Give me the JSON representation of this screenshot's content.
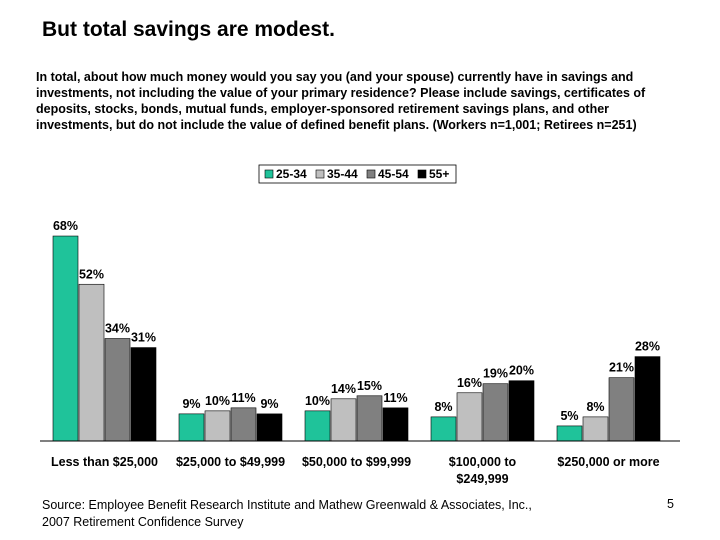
{
  "slide": {
    "title": "But total savings are modest.",
    "question": "In total, about how much money would you say you (and your spouse) currently have in savings and investments, not including the value of your primary residence? Please include savings, certificates of deposits, stocks, bonds, mutual funds, employer-sponsored retirement savings plans, and other investments, but do not include the value of defined benefit plans. (Workers n=1,001; Retirees n=251)",
    "source_line1": "Source: Employee Benefit Research Institute and Mathew Greenwald & Associates, Inc.,",
    "source_line2": "2007 Retirement Confidence Survey",
    "page_number": "5"
  },
  "chart_data": {
    "type": "bar",
    "title": "",
    "xlabel": "",
    "ylabel": "",
    "ylim": [
      0,
      70
    ],
    "categories": [
      [
        "Less than $25,000"
      ],
      [
        "$25,000 to $49,999"
      ],
      [
        "$50,000 to $99,999"
      ],
      [
        "$100,000 to",
        "$249,999"
      ],
      [
        "$250,000 or more"
      ]
    ],
    "series": [
      {
        "name": "25-34",
        "color": "#1fc39a",
        "values": [
          68,
          9,
          10,
          8,
          5
        ],
        "labels": [
          "68%",
          "9%",
          "10%",
          "8%",
          "5%"
        ]
      },
      {
        "name": "35-44",
        "color": "#bfbfbf",
        "values": [
          52,
          10,
          14,
          16,
          8
        ],
        "labels": [
          "52%",
          "10%",
          "14%",
          "16%",
          "8%"
        ]
      },
      {
        "name": "45-54",
        "color": "#808080",
        "values": [
          34,
          11,
          15,
          19,
          21
        ],
        "labels": [
          "34%",
          "11%",
          "15%",
          "19%",
          "21%"
        ]
      },
      {
        "name": "55+",
        "color": "#000000",
        "values": [
          31,
          9,
          11,
          20,
          28
        ],
        "labels": [
          "31%",
          "9%",
          "11%",
          "20%",
          "28%"
        ]
      }
    ],
    "legend_position": "top-center"
  }
}
